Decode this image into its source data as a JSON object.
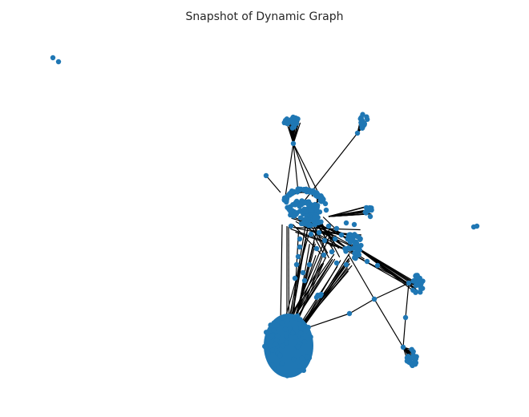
{
  "title": "Snapshot of Dynamic Graph",
  "colors": {
    "node": "#1f77b4",
    "edge": "#000000",
    "background": "#ffffff",
    "title_text": "#262626"
  },
  "chart_data": {
    "type": "network",
    "title": "Snapshot of Dynamic Graph",
    "axes_visible": false,
    "legend": "none",
    "grid": false,
    "node_color": "#1f77b4",
    "edge_color": "#000000"
  }
}
